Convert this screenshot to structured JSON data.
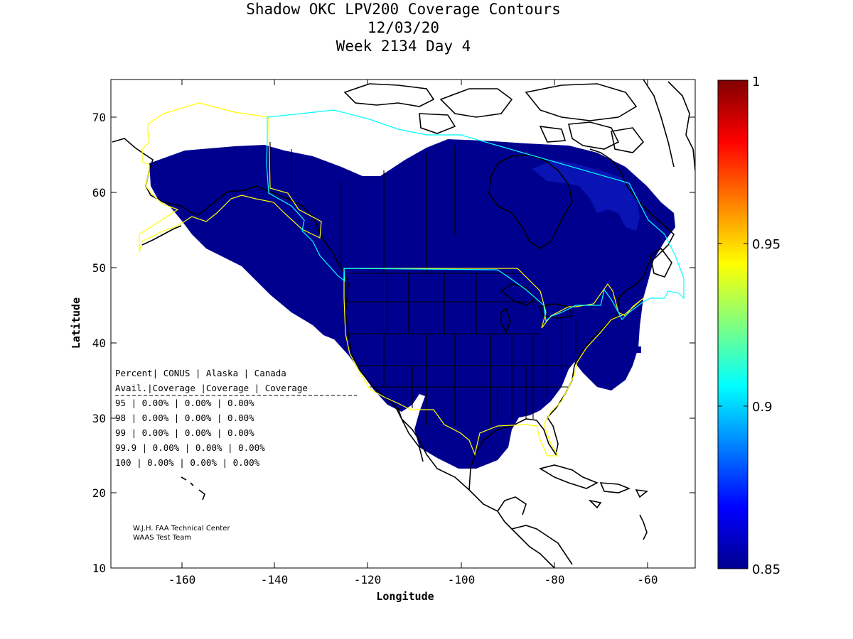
{
  "title": {
    "line1": "Shadow OKC LPV200 Coverage Contours",
    "line2": "12/03/20",
    "line3": "Week 2134 Day 4"
  },
  "axes": {
    "xlabel": "Longitude",
    "ylabel": "Latitude",
    "xticks": [
      "-160",
      "-140",
      "-120",
      "-100",
      "-80",
      "-60"
    ],
    "yticks": [
      "70",
      "60",
      "50",
      "40",
      "30",
      "20",
      "10"
    ],
    "xlim": [
      -175,
      -50
    ],
    "ylim": [
      10,
      75
    ]
  },
  "colorbar": {
    "ticks": [
      "1",
      "0.95",
      "0.9",
      "0.85"
    ],
    "range": [
      0.85,
      1
    ],
    "colormap": "jet"
  },
  "table": {
    "header1": "Percent| CONUS   | Alaska  | Canada",
    "header2": " Avail.|Coverage |Coverage | Coverage",
    "rows": [
      "  95   | 0.00%  | 0.00% | 0.00%",
      "  98   | 0.00%  | 0.00% | 0.00%",
      "  99   | 0.00%  | 0.00% | 0.00%",
      "99.9   | 0.00%  | 0.00% | 0.00%",
      " 100   | 0.00%  | 0.00% | 0.00%"
    ]
  },
  "credit": {
    "line1": "W.J.H. FAA Technical Center",
    "line2": "WAAS Test Team"
  },
  "colors": {
    "coverage_fill": "#00008f",
    "coverage_light": "#0a14b4",
    "conus_boundary": "#ffff00",
    "canada_boundary": "#00ffff",
    "coastline": "#000000"
  }
}
